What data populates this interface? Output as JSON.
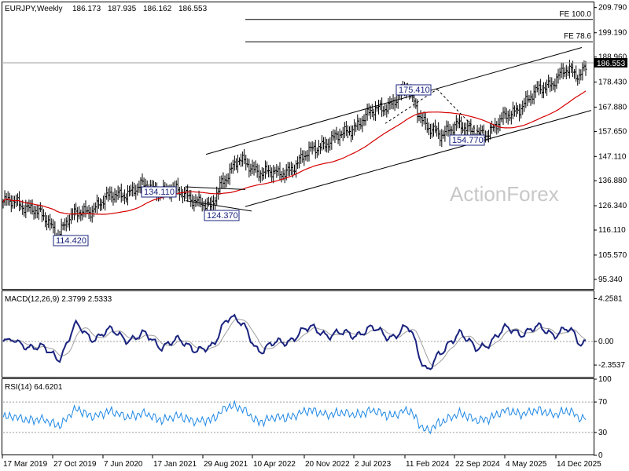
{
  "chart_data": [
    {
      "type": "ohlc",
      "title": "EURJPY,Weekly",
      "ohlc": {
        "open": 186.173,
        "high": 187.935,
        "low": 186.162,
        "close": 186.553
      },
      "last_price_label": "186.553",
      "watermark": "ActionForex",
      "ylim": [
        91.0,
        212.0
      ],
      "y_ticks": [
        209.79,
        199.19,
        188.96,
        178.43,
        167.88,
        157.65,
        147.11,
        136.88,
        126.34,
        116.11,
        105.57,
        95.34
      ],
      "x_ticks": [
        "17 Mar 2019",
        "27 Oct 2019",
        "7 Jun 2020",
        "17 Jan 2021",
        "29 Aug 2021",
        "10 Apr 2022",
        "20 Nov 2022",
        "2 Jul 2023",
        "11 Feb 2024",
        "22 Sep 2024",
        "4 May 2025",
        "14 Dec 2025"
      ],
      "series": [
        {
          "name": "price",
          "color": "#000000"
        },
        {
          "name": "moving-average",
          "color": "#d50000"
        }
      ],
      "levels": [
        {
          "label": "FE 100.0",
          "value": 204.8
        },
        {
          "label": "FE 78.6",
          "value": 195.4
        }
      ],
      "annotations": [
        {
          "label": "114.420",
          "x": "2019-10",
          "y": 114.42
        },
        {
          "label": "134.110",
          "x": "2021-01",
          "y": 134.11
        },
        {
          "label": "124.370",
          "x": "2021-09",
          "y": 124.37
        },
        {
          "label": "175.410",
          "x": "2024-02",
          "y": 175.41
        },
        {
          "label": "154.770",
          "x": "2024-08",
          "y": 154.77
        }
      ]
    },
    {
      "type": "line",
      "title": "MACD(12,26,9) 2.3799 2.5333",
      "ylim": [
        -3.6,
        5.0
      ],
      "y_ticks": [
        4.2581,
        0.0,
        -2.3537
      ],
      "y_tick_labels": [
        "4.2581",
        "0.00",
        "-2.3537"
      ],
      "series": [
        {
          "name": "macd",
          "color": "#1a237e"
        },
        {
          "name": "signal",
          "color": "#9e9e9e"
        }
      ]
    },
    {
      "type": "line",
      "title": "RSI(14) 64.6201",
      "ylim": [
        0,
        100
      ],
      "y_ticks": [
        100,
        70,
        30,
        0
      ],
      "levels": [
        70,
        30
      ],
      "series": [
        {
          "name": "rsi",
          "color": "#1e88e5"
        }
      ]
    }
  ]
}
